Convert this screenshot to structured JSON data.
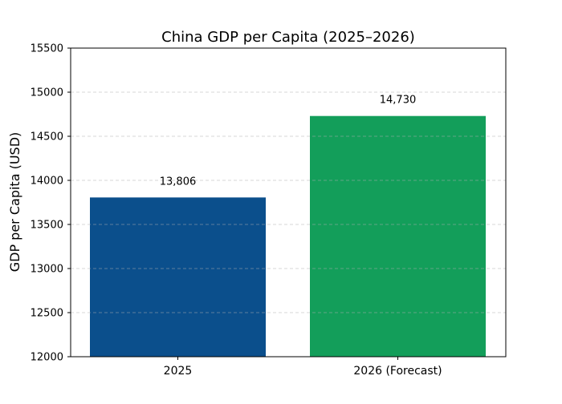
{
  "chart_data": {
    "type": "bar",
    "title": "China GDP per Capita (2025–2026)",
    "xlabel": "",
    "ylabel": "GDP per Capita (USD)",
    "categories": [
      "2025",
      "2026 (Forecast)"
    ],
    "values": [
      13806,
      14730
    ],
    "data_labels": [
      "13,806",
      "14,730"
    ],
    "colors": [
      "#0b4f8c",
      "#139e5a"
    ],
    "ylim": [
      12000,
      15500
    ],
    "yticks": [
      "12000",
      "12500",
      "13000",
      "13500",
      "14000",
      "14500",
      "15000",
      "15500"
    ],
    "grid": "y-dashed",
    "legend": "none"
  }
}
